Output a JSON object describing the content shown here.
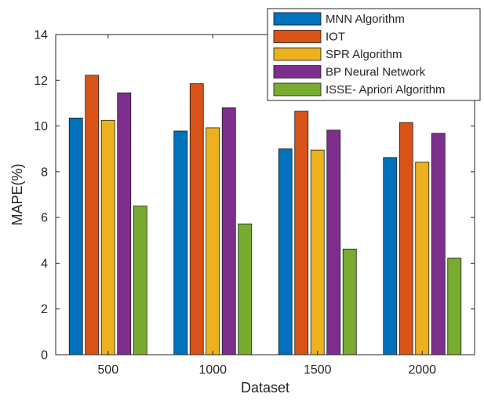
{
  "chart_data": {
    "type": "bar",
    "title": "",
    "xlabel": "Dataset",
    "ylabel": "MAPE(%)",
    "categories": [
      "500",
      "1000",
      "1500",
      "2000"
    ],
    "ylim": [
      0,
      14
    ],
    "yticks": [
      "0",
      "2",
      "4",
      "6",
      "8",
      "10",
      "12",
      "14"
    ],
    "grid": false,
    "legend_position": "top-right",
    "series": [
      {
        "name": "MNN Algorithm",
        "color": "#0072BD",
        "values": [
          10.35,
          9.78,
          9.0,
          8.62
        ]
      },
      {
        "name": "IOT",
        "color": "#D95319",
        "values": [
          12.22,
          11.85,
          10.65,
          10.15
        ]
      },
      {
        "name": "SPR Algorithm",
        "color": "#EDB120",
        "values": [
          10.25,
          9.92,
          8.95,
          8.42
        ]
      },
      {
        "name": "BP Neural Network",
        "color": "#7E2F8E",
        "values": [
          11.45,
          10.8,
          9.82,
          9.68
        ]
      },
      {
        "name": "ISSE- Apriori Algorithm",
        "color": "#77AC30",
        "values": [
          6.5,
          5.72,
          4.62,
          4.22
        ]
      }
    ]
  }
}
